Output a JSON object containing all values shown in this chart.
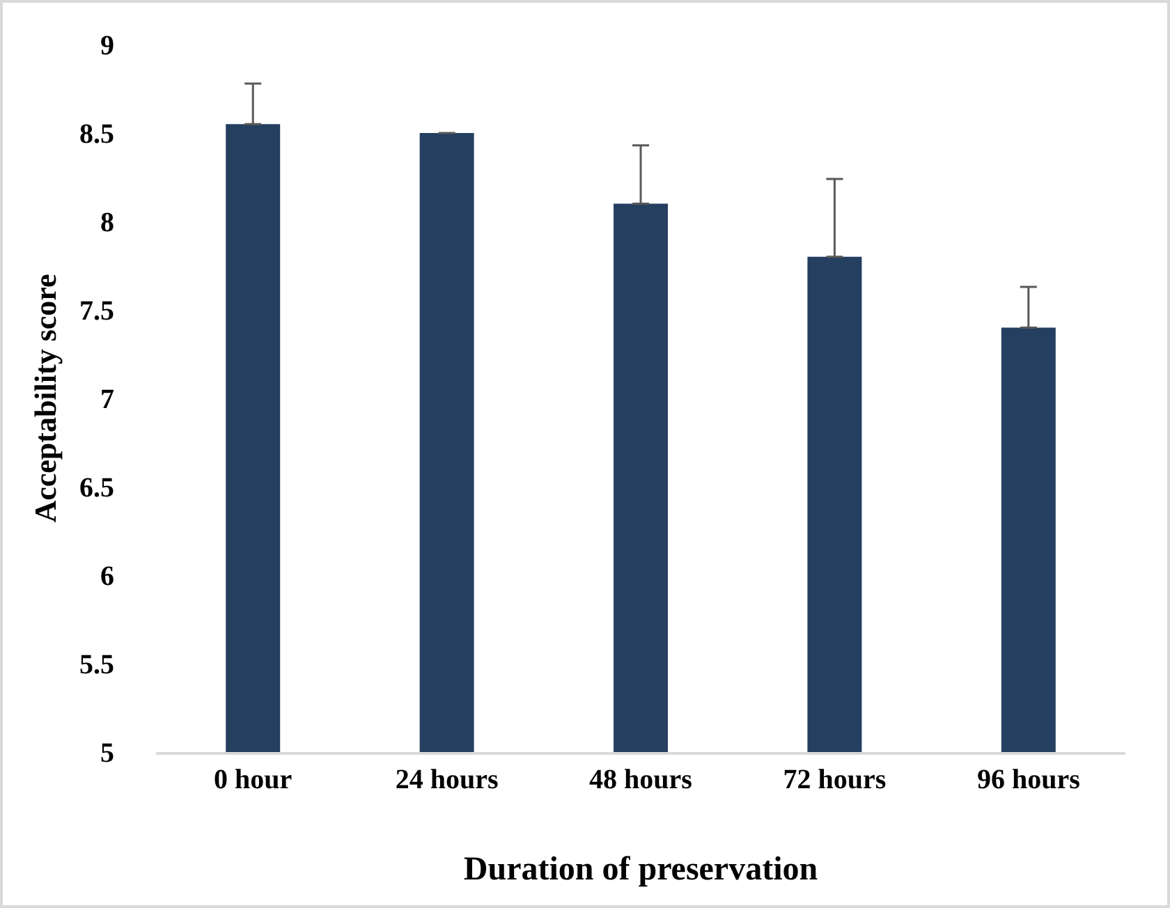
{
  "chart_data": {
    "type": "bar",
    "xlabel": "Duration of preservation",
    "ylabel": "Acceptability score",
    "categories": [
      "0 hour",
      "24 hours",
      "48 hours",
      "72 hours",
      "96 hours"
    ],
    "values": [
      8.55,
      8.5,
      8.1,
      7.8,
      7.4
    ],
    "errors": [
      [
        8.55,
        8.78
      ],
      [
        8.5,
        8.5
      ],
      [
        8.1,
        8.43
      ],
      [
        7.8,
        8.24
      ],
      [
        7.4,
        7.63
      ]
    ],
    "color": "#243f60",
    "ylim": [
      5,
      9
    ],
    "yticks": [
      5,
      5.5,
      6,
      6.5,
      7,
      7.5,
      8,
      8.5,
      9
    ],
    "grid": false
  }
}
